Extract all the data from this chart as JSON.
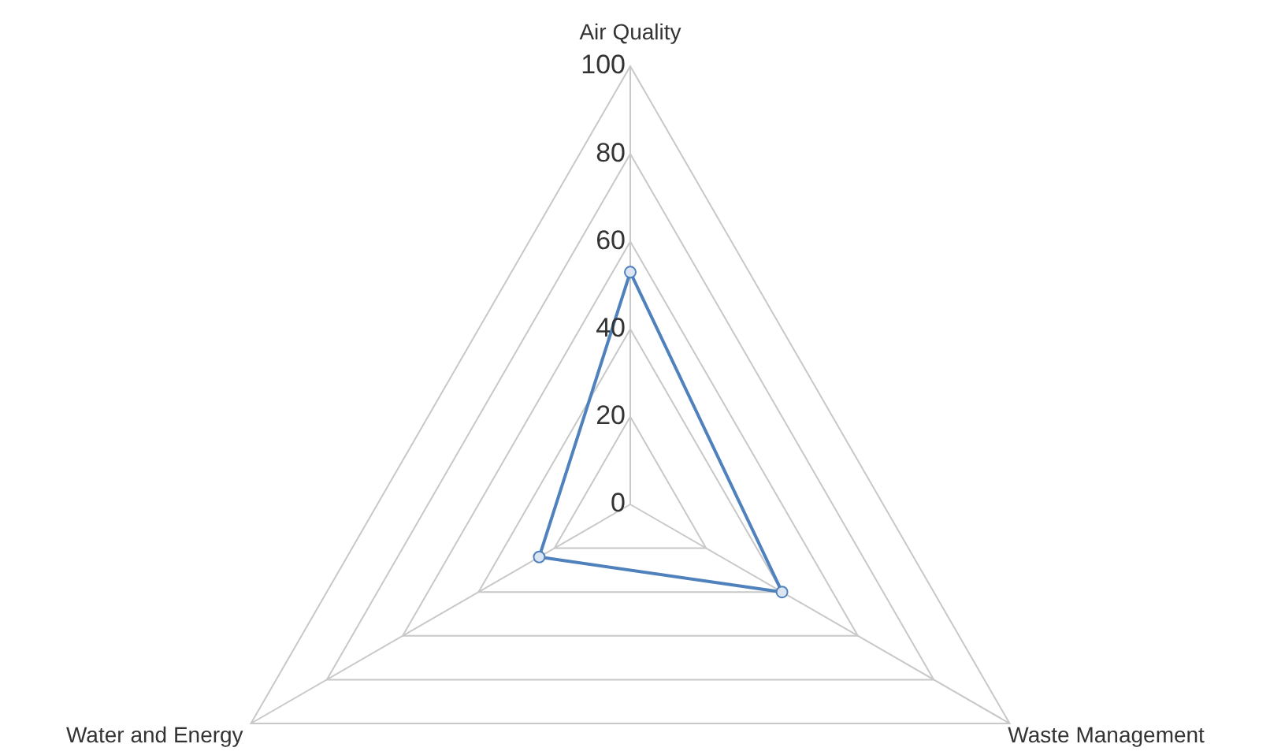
{
  "chart_data": {
    "type": "radar",
    "categories": [
      "Air Quality",
      "Waste Management",
      "Water and Energy"
    ],
    "series": [
      {
        "color": "#4f81bd",
        "values": [
          53,
          40,
          24
        ]
      }
    ],
    "ylim": [
      0,
      100
    ],
    "yticks": [
      0,
      20,
      40,
      60,
      80,
      100
    ],
    "grid": true,
    "legend": false,
    "marker": "circle"
  }
}
